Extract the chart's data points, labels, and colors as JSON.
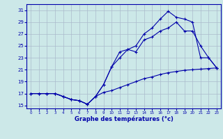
{
  "xlabel": "Graphe des températures (°c)",
  "background_color": "#cce8e8",
  "grid_color": "#aabbcc",
  "line_color": "#0000aa",
  "ylim": [
    14.5,
    32
  ],
  "xlim": [
    -0.5,
    23.5
  ],
  "yticks": [
    15,
    17,
    19,
    21,
    23,
    25,
    27,
    29,
    31
  ],
  "xticks": [
    0,
    1,
    2,
    3,
    4,
    5,
    6,
    7,
    8,
    9,
    10,
    11,
    12,
    13,
    14,
    15,
    16,
    17,
    18,
    19,
    20,
    21,
    22,
    23
  ],
  "line1_x": [
    0,
    1,
    2,
    3,
    4,
    5,
    6,
    7,
    8,
    9,
    10,
    11,
    12,
    13,
    14,
    15,
    16,
    17,
    18,
    19,
    20,
    21,
    22,
    23
  ],
  "line1_y": [
    17,
    17,
    17,
    17,
    16.5,
    16,
    15.8,
    15.2,
    16.5,
    18.5,
    21.5,
    24,
    24.4,
    25,
    27,
    28,
    29.5,
    30.8,
    29.8,
    29.5,
    29,
    23,
    23,
    21.3
  ],
  "line2_x": [
    0,
    1,
    2,
    3,
    4,
    5,
    6,
    7,
    8,
    9,
    10,
    11,
    12,
    13,
    14,
    15,
    16,
    17,
    18,
    19,
    20,
    21,
    22,
    23
  ],
  "line2_y": [
    17,
    17,
    17,
    17,
    16.5,
    16,
    15.8,
    15.2,
    16.5,
    18.5,
    21.5,
    23,
    24.4,
    24,
    26,
    26.5,
    27.5,
    28,
    29,
    27.5,
    27.5,
    25,
    23,
    21.3
  ],
  "line3_x": [
    0,
    1,
    2,
    3,
    4,
    5,
    6,
    7,
    8,
    9,
    10,
    11,
    12,
    13,
    14,
    15,
    16,
    17,
    18,
    19,
    20,
    21,
    22,
    23
  ],
  "line3_y": [
    17,
    17,
    17,
    17,
    16.5,
    16,
    15.8,
    15.2,
    16.5,
    17.2,
    17.5,
    18,
    18.5,
    19,
    19.5,
    19.8,
    20.2,
    20.5,
    20.7,
    20.9,
    21,
    21.1,
    21.2,
    21.3
  ]
}
